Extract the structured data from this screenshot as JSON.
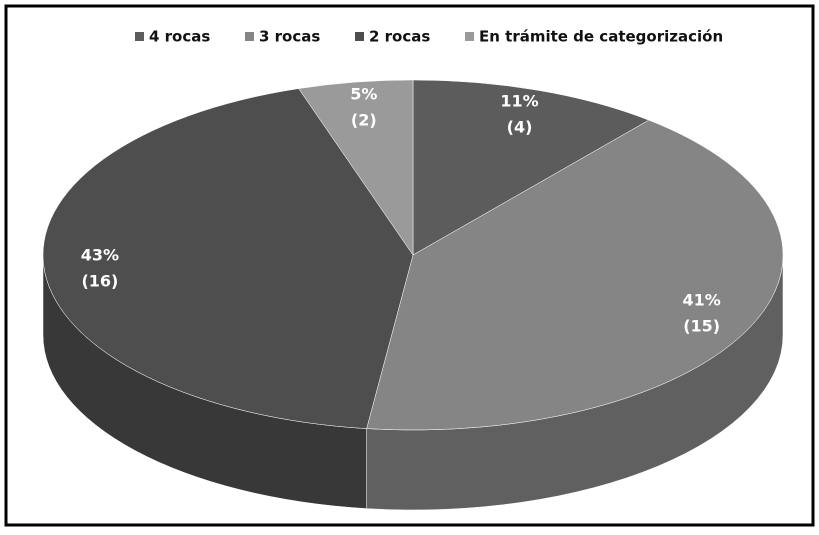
{
  "chart_data": {
    "type": "pie3d",
    "categories": [
      "4 rocas",
      "3 rocas",
      "2 rocas",
      "En trámite de categorización"
    ],
    "values": [
      11,
      41,
      43,
      5
    ],
    "value_labels": [
      "11%",
      "41%",
      "43%",
      "5%"
    ],
    "counts": [
      4,
      15,
      16,
      2
    ],
    "count_labels": [
      "(4)",
      "(15)",
      "(16)",
      "(2)"
    ],
    "colors": [
      "#5c5c5c",
      "#858585",
      "#4e4e4e",
      "#9a9a9a"
    ],
    "legend": "top"
  }
}
